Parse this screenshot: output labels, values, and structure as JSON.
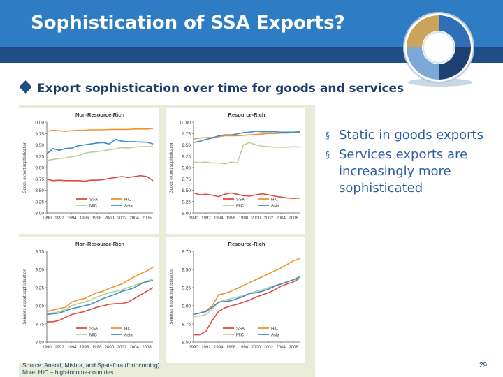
{
  "slide": {
    "title": "Sophistication of SSA Exports?",
    "subtitle": "Export sophistication over time for goods and services",
    "bullets": [
      "Static in goods exports",
      "Services exports are increasingly more sophisticated"
    ],
    "source_line1": "Source: Anand, Mishra, and Spatafora (forthcoming).",
    "source_line2": "Note: HIC – high-income-countries.",
    "page_number": "29",
    "colors": {
      "title_bar": "#2e7dc4",
      "title_band": "#1f4e86",
      "subtitle": "#1f3d6a",
      "bullet_text": "#2f5f9e",
      "figure_bg": "#e9ecd9"
    }
  },
  "chart_data": [
    {
      "type": "line",
      "title": "Non-Resource-Rich",
      "ylabel": "Goods export sophistication",
      "xlabel": "",
      "x": [
        1990,
        1991,
        1992,
        1993,
        1994,
        1995,
        1996,
        1997,
        1998,
        1999,
        2000,
        2001,
        2002,
        2003,
        2004,
        2005,
        2006,
        2007
      ],
      "xticks": [
        "1990",
        "1992",
        "1994",
        "1996",
        "1998",
        "2000",
        "2002",
        "2004",
        "2006"
      ],
      "yticks": [
        "8.00",
        "8.25",
        "8.50",
        "8.75",
        "9.00",
        "9.25",
        "9.50",
        "9.75",
        "10.00"
      ],
      "ylim": [
        8.0,
        10.0
      ],
      "series": [
        {
          "name": "SSA",
          "color": "#e2493f",
          "values": [
            8.74,
            8.71,
            8.72,
            8.71,
            8.71,
            8.71,
            8.7,
            8.72,
            8.72,
            8.73,
            8.76,
            8.78,
            8.8,
            8.78,
            8.8,
            8.82,
            8.8,
            8.71
          ]
        },
        {
          "name": "HIC",
          "color": "#f0922e",
          "values": [
            9.8,
            9.82,
            9.81,
            9.8,
            9.81,
            9.82,
            9.82,
            9.83,
            9.83,
            9.83,
            9.84,
            9.84,
            9.84,
            9.84,
            9.85,
            9.85,
            9.85,
            9.86
          ]
        },
        {
          "name": "MIC",
          "color": "#b3d19a",
          "values": [
            9.15,
            9.18,
            9.2,
            9.21,
            9.24,
            9.26,
            9.31,
            9.34,
            9.35,
            9.37,
            9.39,
            9.41,
            9.44,
            9.43,
            9.45,
            9.46,
            9.46,
            9.46
          ]
        },
        {
          "name": "Asia",
          "color": "#3f8cc6",
          "values": [
            9.3,
            9.42,
            9.38,
            9.42,
            9.43,
            9.48,
            9.5,
            9.52,
            9.54,
            9.55,
            9.52,
            9.62,
            9.58,
            9.57,
            9.57,
            9.56,
            9.56,
            9.52
          ]
        }
      ]
    },
    {
      "type": "line",
      "title": "Resource-Rich",
      "ylabel": "Goods export sophistication",
      "xlabel": "",
      "x": [
        1990,
        1991,
        1992,
        1993,
        1994,
        1995,
        1996,
        1997,
        1998,
        1999,
        2000,
        2001,
        2002,
        2003,
        2004,
        2005,
        2006,
        2007
      ],
      "xticks": [
        "1990",
        "1992",
        "1994",
        "1996",
        "1998",
        "2000",
        "2002",
        "2004",
        "2006"
      ],
      "yticks": [
        "8.00",
        "8.25",
        "8.50",
        "8.75",
        "9.00",
        "9.25",
        "9.50",
        "9.75",
        "10.00"
      ],
      "ylim": [
        8.0,
        10.0
      ],
      "series": [
        {
          "name": "SSA",
          "color": "#e2493f",
          "values": [
            8.44,
            8.4,
            8.41,
            8.39,
            8.36,
            8.41,
            8.44,
            8.41,
            8.38,
            8.37,
            8.4,
            8.42,
            8.4,
            8.37,
            8.35,
            8.33,
            8.32,
            8.33
          ]
        },
        {
          "name": "HIC",
          "color": "#f0922e",
          "values": [
            9.63,
            9.65,
            9.66,
            9.66,
            9.68,
            9.7,
            9.7,
            9.7,
            9.71,
            9.72,
            9.73,
            9.74,
            9.75,
            9.75,
            9.76,
            9.76,
            9.77,
            9.78
          ]
        },
        {
          "name": "MIC",
          "color": "#b3d19a",
          "values": [
            9.12,
            9.11,
            9.12,
            9.1,
            9.1,
            9.08,
            9.12,
            9.1,
            9.5,
            9.55,
            9.5,
            9.47,
            9.46,
            9.45,
            9.45,
            9.45,
            9.46,
            9.45
          ]
        },
        {
          "name": "Asia",
          "color": "#3f8cc6",
          "values": [
            9.55,
            9.58,
            9.62,
            9.65,
            9.7,
            9.72,
            9.72,
            9.74,
            9.77,
            9.78,
            9.8,
            9.79,
            9.79,
            9.79,
            9.78,
            9.78,
            9.78,
            9.79
          ]
        }
      ]
    },
    {
      "type": "line",
      "title": "Non-Resource-Rich",
      "ylabel": "Services export sophistication",
      "xlabel": "",
      "x": [
        1990,
        1991,
        1992,
        1993,
        1994,
        1995,
        1996,
        1997,
        1998,
        1999,
        2000,
        2001,
        2002,
        2003,
        2004,
        2005,
        2006,
        2007
      ],
      "xticks": [
        "1990",
        "1992",
        "1994",
        "1996",
        "1998",
        "2000",
        "2002",
        "2004",
        "2006"
      ],
      "yticks": [
        "8.50",
        "8.75",
        "9.00",
        "9.25",
        "9.50",
        "9.75"
      ],
      "ylim": [
        8.5,
        9.75
      ],
      "series": [
        {
          "name": "SSA",
          "color": "#e2493f",
          "values": [
            8.78,
            8.78,
            8.8,
            8.84,
            8.88,
            8.9,
            8.92,
            8.95,
            8.98,
            9.0,
            9.02,
            9.03,
            9.03,
            9.05,
            9.1,
            9.15,
            9.2,
            9.25
          ]
        },
        {
          "name": "HIC",
          "color": "#f0922e",
          "values": [
            8.92,
            8.94,
            8.96,
            8.98,
            9.05,
            9.08,
            9.1,
            9.14,
            9.18,
            9.2,
            9.24,
            9.27,
            9.3,
            9.35,
            9.4,
            9.44,
            9.48,
            9.53
          ]
        },
        {
          "name": "MIC",
          "color": "#b3d19a",
          "values": [
            8.88,
            8.9,
            8.92,
            8.95,
            9.0,
            9.03,
            9.05,
            9.08,
            9.12,
            9.15,
            9.18,
            9.2,
            9.22,
            9.25,
            9.28,
            9.31,
            9.34,
            9.37
          ]
        },
        {
          "name": "Asia",
          "color": "#3f8cc6",
          "values": [
            8.88,
            8.89,
            8.9,
            8.93,
            8.96,
            8.98,
            9.0,
            9.02,
            9.06,
            9.1,
            9.13,
            9.16,
            9.2,
            9.22,
            9.25,
            9.3,
            9.33,
            9.35
          ]
        }
      ]
    },
    {
      "type": "line",
      "title": "Resource-Rich",
      "ylabel": "Services export sophistication",
      "xlabel": "",
      "x": [
        1990,
        1991,
        1992,
        1993,
        1994,
        1995,
        1996,
        1997,
        1998,
        1999,
        2000,
        2001,
        2002,
        2003,
        2004,
        2005,
        2006,
        2007
      ],
      "xticks": [
        "1990",
        "1992",
        "1994",
        "1996",
        "1998",
        "2000",
        "2002",
        "2004",
        "2006"
      ],
      "yticks": [
        "8.50",
        "8.75",
        "9.00",
        "9.25",
        "9.50",
        "9.75"
      ],
      "ylim": [
        8.5,
        9.75
      ],
      "series": [
        {
          "name": "SSA",
          "color": "#e2493f",
          "values": [
            8.6,
            8.6,
            8.65,
            8.8,
            8.92,
            8.97,
            9.0,
            9.02,
            9.05,
            9.08,
            9.12,
            9.15,
            9.18,
            9.22,
            9.27,
            9.3,
            9.33,
            9.38
          ]
        },
        {
          "name": "HIC",
          "color": "#f0922e",
          "values": [
            8.88,
            8.9,
            8.93,
            9.0,
            9.15,
            9.17,
            9.2,
            9.24,
            9.28,
            9.32,
            9.36,
            9.4,
            9.44,
            9.48,
            9.52,
            9.57,
            9.62,
            9.65
          ]
        },
        {
          "name": "MIC",
          "color": "#b3d19a",
          "values": [
            8.85,
            8.86,
            8.88,
            8.95,
            9.05,
            9.08,
            9.1,
            9.12,
            9.14,
            9.17,
            9.2,
            9.22,
            9.25,
            9.28,
            9.3,
            9.33,
            9.36,
            9.38
          ]
        },
        {
          "name": "Asia",
          "color": "#3f8cc6",
          "values": [
            8.88,
            8.9,
            8.92,
            8.98,
            9.05,
            9.06,
            9.07,
            9.1,
            9.13,
            9.17,
            9.18,
            9.2,
            9.23,
            9.27,
            9.3,
            9.33,
            9.36,
            9.4
          ]
        }
      ]
    }
  ]
}
